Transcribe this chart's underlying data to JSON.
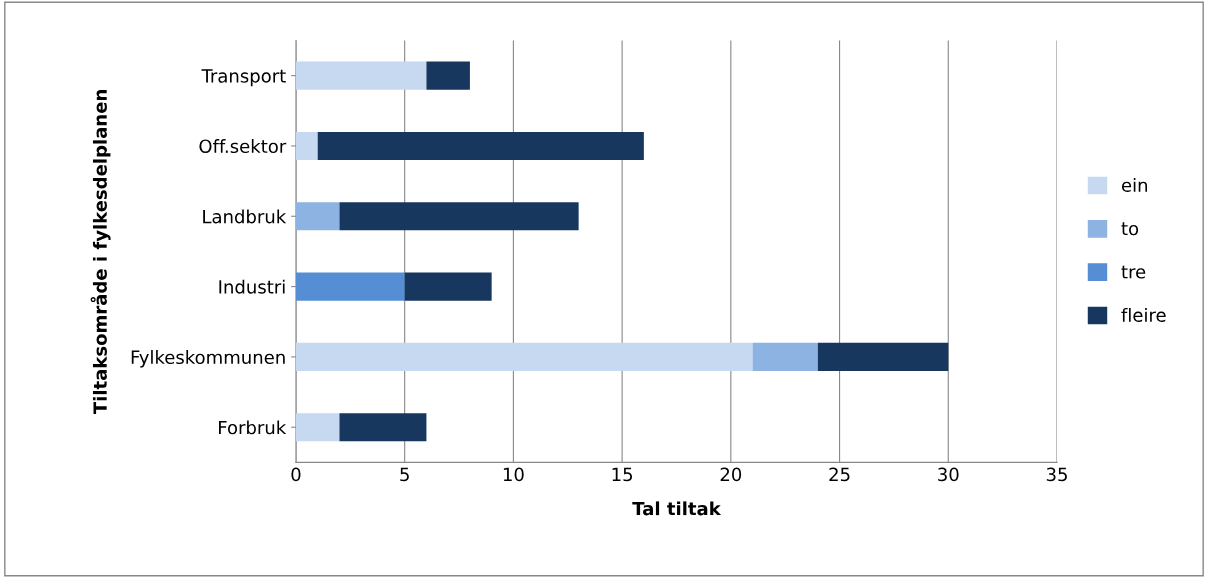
{
  "chart_data": {
    "type": "bar",
    "orientation": "horizontal",
    "stacked": true,
    "xlabel": "Tal tiltak",
    "ylabel": "Tiltaksområde i fylkesdelplanen",
    "categories": [
      "Transport",
      "Off.sektor",
      "Landbruk",
      "Industri",
      "Fylkeskommunen",
      "Forbruk"
    ],
    "series": [
      {
        "name": "ein",
        "color": "#c6d9f1",
        "values": [
          6,
          1,
          0,
          0,
          21,
          2
        ]
      },
      {
        "name": "to",
        "color": "#8db3e2",
        "values": [
          0,
          0,
          2,
          0,
          3,
          0
        ]
      },
      {
        "name": "tre",
        "color": "#558ed5",
        "values": [
          0,
          0,
          0,
          5,
          0,
          0
        ]
      },
      {
        "name": "fleire",
        "color": "#17375e",
        "values": [
          2,
          15,
          11,
          4,
          6,
          4
        ]
      }
    ],
    "xlim": [
      0,
      35
    ],
    "xticks": [
      0,
      5,
      10,
      15,
      20,
      25,
      30,
      35
    ],
    "grid": "x",
    "legend": "right"
  }
}
